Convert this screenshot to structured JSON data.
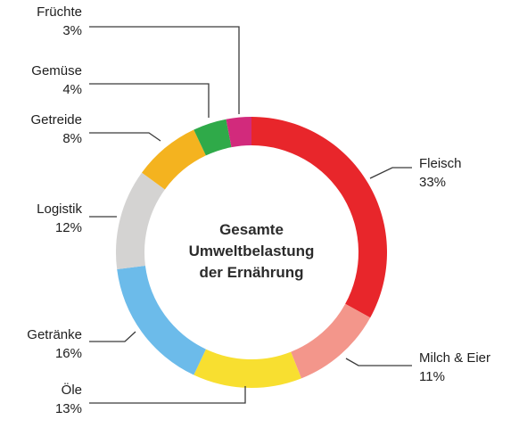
{
  "chart_data": {
    "type": "pie",
    "donut": true,
    "center_label": [
      "Gesamte",
      "Umweltbelastung",
      "der Ernährung"
    ],
    "slices": [
      {
        "name": "Fleisch",
        "value": 33,
        "label": "33%",
        "color": "#e8262b"
      },
      {
        "name": "Milch & Eier",
        "value": 11,
        "label": "11%",
        "color": "#f3968b"
      },
      {
        "name": "Öle",
        "value": 13,
        "label": "13%",
        "color": "#f8df30"
      },
      {
        "name": "Getränke",
        "value": 16,
        "label": "16%",
        "color": "#6cbbea"
      },
      {
        "name": "Logistik",
        "value": 12,
        "label": "12%",
        "color": "#d4d3d2"
      },
      {
        "name": "Getreide",
        "value": 8,
        "label": "8%",
        "color": "#f4b31f"
      },
      {
        "name": "Gemüse",
        "value": 4,
        "label": "4%",
        "color": "#2faa49"
      },
      {
        "name": "Früchte",
        "value": 3,
        "label": "3%",
        "color": "#d22a7c"
      }
    ]
  }
}
